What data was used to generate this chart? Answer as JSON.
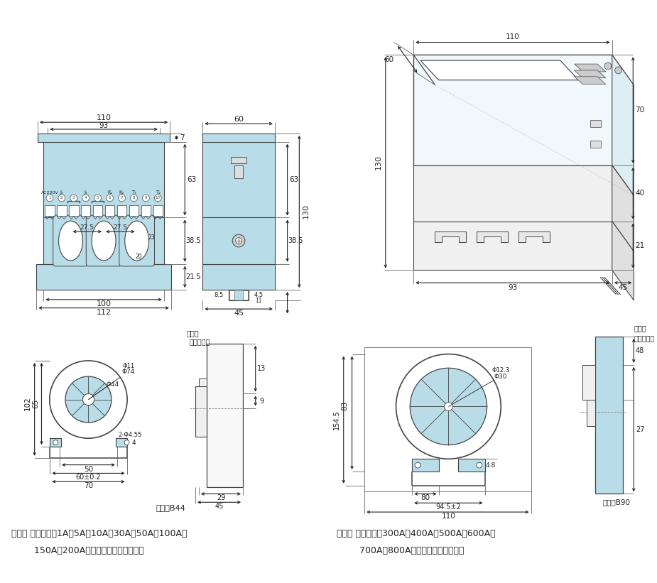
{
  "bg_color": "#ffffff",
  "light_blue": "#b8dce8",
  "line_color": "#444444",
  "dim_color": "#222222",
  "note1": "说明： 适用于配在1A、5A、10A、30A、50A、100A、",
  "note1b": "        150A、200A规格的漏电零序互感器。",
  "note2": "说明： 适用于配在300A、400A、500A、600A、",
  "note2b": "        700A、800A规格漏电零序互感器。"
}
